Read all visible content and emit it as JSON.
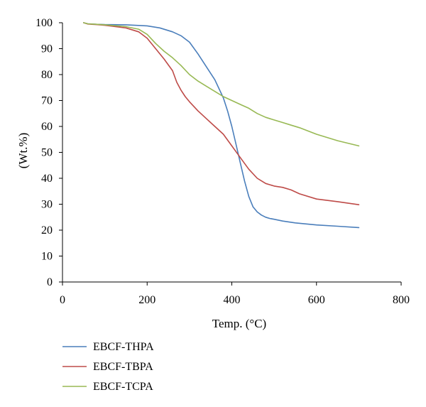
{
  "chart_data": {
    "type": "line",
    "title": "",
    "xlabel": "Temp. (°C)",
    "ylabel": "(Wt.%)",
    "xlim": [
      0,
      800
    ],
    "ylim": [
      0,
      100
    ],
    "xticks": [
      "0",
      "200",
      "400",
      "600",
      "800"
    ],
    "yticks": [
      "0",
      "10",
      "20",
      "30",
      "40",
      "50",
      "60",
      "70",
      "80",
      "90",
      "100"
    ],
    "grid": false,
    "legend_position": "bottom-left",
    "series": [
      {
        "name": "EBCF-THPA",
        "color": "#4a7ebb",
        "x": [
          50,
          60,
          80,
          100,
          150,
          200,
          230,
          260,
          280,
          300,
          320,
          340,
          360,
          380,
          390,
          400,
          410,
          420,
          430,
          440,
          450,
          460,
          470,
          480,
          490,
          500,
          520,
          550,
          600,
          650,
          700
        ],
        "y": [
          100,
          99.6,
          99.4,
          99.3,
          99.2,
          98.8,
          98,
          96.5,
          95,
          92.5,
          88,
          83,
          78,
          71,
          66,
          60,
          53,
          46,
          39,
          33,
          29,
          27,
          25.8,
          25,
          24.5,
          24.2,
          23.5,
          22.8,
          22,
          21.5,
          21
        ]
      },
      {
        "name": "EBCF-TBPA",
        "color": "#be4b48",
        "x": [
          50,
          60,
          80,
          100,
          150,
          180,
          200,
          220,
          240,
          260,
          270,
          280,
          290,
          300,
          320,
          340,
          360,
          380,
          400,
          420,
          440,
          460,
          480,
          500,
          520,
          540,
          560,
          600,
          650,
          700
        ],
        "y": [
          100,
          99.5,
          99.3,
          99,
          98,
          96.5,
          94,
          90,
          86,
          81.5,
          77,
          74,
          71.5,
          69.5,
          66,
          63,
          60,
          57,
          52.5,
          48,
          43.5,
          40,
          38,
          37,
          36.5,
          35.5,
          34,
          32,
          31,
          29.8
        ]
      },
      {
        "name": "EBCF-TCPA",
        "color": "#98b954",
        "x": [
          50,
          60,
          80,
          100,
          150,
          180,
          200,
          220,
          240,
          260,
          280,
          300,
          320,
          340,
          360,
          380,
          400,
          420,
          440,
          460,
          480,
          500,
          520,
          540,
          560,
          600,
          650,
          700
        ],
        "y": [
          100,
          99.6,
          99.4,
          99.2,
          98.5,
          97.5,
          95.5,
          92,
          89,
          86.5,
          83.5,
          80,
          77.5,
          75.5,
          73.5,
          71.5,
          70,
          68.5,
          67,
          65,
          63.5,
          62.5,
          61.5,
          60.5,
          59.5,
          57,
          54.5,
          52.5
        ]
      }
    ]
  }
}
